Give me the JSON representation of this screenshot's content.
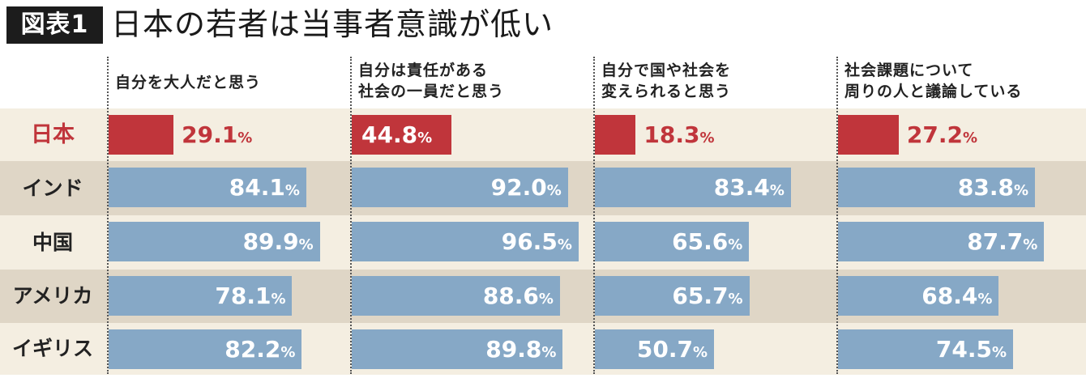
{
  "header": {
    "badge": "図表1",
    "title": "日本の若者は当事者意識が低い"
  },
  "chart_data": {
    "type": "bar",
    "unit": "%",
    "categories": [
      "日本",
      "インド",
      "中国",
      "アメリカ",
      "イギリス"
    ],
    "panels": [
      {
        "title": "自分を大人だと思う",
        "values": [
          29.1,
          84.1,
          89.9,
          78.1,
          82.2
        ]
      },
      {
        "title": "自分は責任がある\n社会の一員だと思う",
        "values": [
          44.8,
          92.0,
          96.5,
          88.6,
          89.8
        ]
      },
      {
        "title": "自分で国や社会を\n変えられると思う",
        "values": [
          18.3,
          83.4,
          65.6,
          65.7,
          50.7
        ]
      },
      {
        "title": "社会課題について\n周りの人と議論している",
        "values": [
          27.2,
          83.8,
          87.7,
          68.4,
          74.5
        ]
      }
    ],
    "colors": {
      "highlight": "#c0353b",
      "bar": "#86a8c6",
      "band_light": "#f4eee1",
      "band_dark": "#dfd6c6"
    }
  }
}
